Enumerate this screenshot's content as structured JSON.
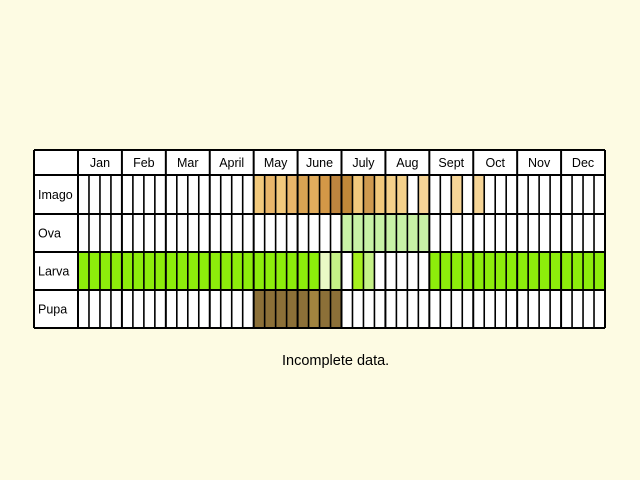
{
  "chart_data": {
    "type": "table",
    "title": "",
    "subtitle": "",
    "months": [
      "Jan",
      "Feb",
      "Mar",
      "April",
      "May",
      "June",
      "July",
      "Aug",
      "Sept",
      "Oct",
      "Nov",
      "Dec"
    ],
    "cells_per_month": 4,
    "stages": [
      {
        "name": "Imago",
        "periods": [
          {
            "from_month": 5,
            "week": 1,
            "weeks": 1,
            "color": "#f2c97c"
          },
          {
            "from_month": 5,
            "week": 2,
            "weeks": 1,
            "color": "#e9b66a"
          },
          {
            "from_month": 5,
            "week": 3,
            "weeks": 1,
            "color": "#f2c97c"
          },
          {
            "from_month": 5,
            "week": 4,
            "weeks": 1,
            "color": "#e9b66a"
          },
          {
            "from_month": 6,
            "week": 1,
            "weeks": 1,
            "color": "#d9a353"
          },
          {
            "from_month": 6,
            "week": 2,
            "weeks": 1,
            "color": "#e1ac5d"
          },
          {
            "from_month": 6,
            "week": 3,
            "weeks": 1,
            "color": "#d39847"
          },
          {
            "from_month": 6,
            "week": 4,
            "weeks": 1,
            "color": "#be853f"
          },
          {
            "from_month": 7,
            "week": 1,
            "weeks": 1,
            "color": "#c08839"
          },
          {
            "from_month": 7,
            "week": 2,
            "weeks": 1,
            "color": "#f2c97c"
          },
          {
            "from_month": 7,
            "week": 3,
            "weeks": 1,
            "color": "#cf9a4f"
          },
          {
            "from_month": 7,
            "week": 4,
            "weeks": 1,
            "color": "#f2c97c"
          },
          {
            "from_month": 8,
            "week": 1,
            "weeks": 2,
            "color": "#f5d18a"
          },
          {
            "from_month": 8,
            "week": 4,
            "weeks": 1,
            "color": "#f6d597"
          },
          {
            "from_month": 9,
            "week": 3,
            "weeks": 1,
            "color": "#f6d597"
          },
          {
            "from_month": 10,
            "week": 1,
            "weeks": 1,
            "color": "#f6d597"
          }
        ]
      },
      {
        "name": "Ova",
        "periods": [
          {
            "from_month": 7,
            "week": 1,
            "weeks": 8,
            "color": "#c8f2a6"
          }
        ]
      },
      {
        "name": "Larva",
        "periods": [
          {
            "from_month": 1,
            "week": 1,
            "weeks": 22,
            "color": "#8ded0b"
          },
          {
            "from_month": 6,
            "week": 3,
            "weeks": 1,
            "color": "#eaf9c6"
          },
          {
            "from_month": 6,
            "week": 4,
            "weeks": 1,
            "color": "#c5f287"
          },
          {
            "from_month": 7,
            "week": 1,
            "weeks": 1,
            "color": "#ffffff"
          },
          {
            "from_month": 7,
            "week": 2,
            "weeks": 1,
            "color": "#a6f01e"
          },
          {
            "from_month": 7,
            "week": 3,
            "weeks": 1,
            "color": "#c5f287"
          },
          {
            "from_month": 9,
            "week": 1,
            "weeks": 16,
            "color": "#8ded0b"
          }
        ]
      },
      {
        "name": "Pupa",
        "periods": [
          {
            "from_month": 5,
            "week": 1,
            "weeks": 4,
            "color": "#8c7038"
          },
          {
            "from_month": 6,
            "week": 1,
            "weeks": 1,
            "color": "#8c7038"
          },
          {
            "from_month": 6,
            "week": 2,
            "weeks": 1,
            "color": "#a1843f"
          },
          {
            "from_month": 6,
            "week": 3,
            "weeks": 2,
            "color": "#8c7038"
          }
        ]
      }
    ],
    "grid": true,
    "grid_color": "#000000",
    "cell_color": "#ffffff",
    "background": "#fdfbe3",
    "note": "Incomplete data."
  }
}
